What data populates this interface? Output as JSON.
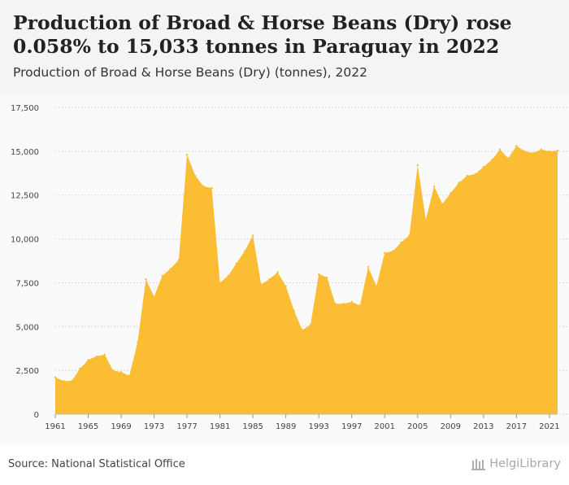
{
  "header": {
    "title": "Production of Broad & Horse Beans (Dry) rose 0.058% to 15,033 tonnes in Paraguay in 2022",
    "subtitle": "Production of Broad & Horse Beans (Dry) (tonnes), 2022"
  },
  "footer": {
    "source": "Source: National Statistical Office",
    "logo_text": "HelgiLibrary"
  },
  "colors": {
    "area_fill": "#fbbd33",
    "grid": "#d9d9d9",
    "axis_text": "#444444"
  },
  "chart_data": {
    "type": "area",
    "title": "",
    "xlabel": "",
    "ylabel": "",
    "ylim": [
      0,
      17500
    ],
    "yticks": [
      0,
      2500,
      5000,
      7500,
      10000,
      12500,
      15000,
      17500
    ],
    "ytick_labels": [
      "0",
      "2,500",
      "5,000",
      "7,500",
      "10,000",
      "12,500",
      "15,000",
      "17,500"
    ],
    "xticks": [
      1961,
      1965,
      1969,
      1973,
      1977,
      1981,
      1985,
      1989,
      1993,
      1997,
      2001,
      2005,
      2009,
      2013,
      2017,
      2021
    ],
    "grid": true,
    "legend": "none",
    "series": [
      {
        "x": [
          1961,
          1962,
          1963,
          1964,
          1965,
          1966,
          1967,
          1968,
          1969,
          1970,
          1971,
          1972,
          1973,
          1974,
          1975,
          1976,
          1977,
          1978,
          1979,
          1980,
          1981,
          1982,
          1983,
          1984,
          1985,
          1986,
          1987,
          1988,
          1989,
          1990,
          1991,
          1992,
          1993,
          1994,
          1995,
          1996,
          1997,
          1998,
          1999,
          2000,
          2001,
          2002,
          2003,
          2004,
          2005,
          2006,
          2007,
          2008,
          2009,
          2010,
          2011,
          2012,
          2013,
          2014,
          2015,
          2016,
          2017,
          2018,
          2019,
          2020,
          2021,
          2022
        ],
        "values": [
          2100,
          1900,
          1900,
          2600,
          3100,
          3300,
          3400,
          2500,
          2400,
          2200,
          4100,
          7700,
          6700,
          7900,
          8300,
          8800,
          14800,
          13600,
          13000,
          12900,
          7500,
          7900,
          8600,
          9300,
          10200,
          7400,
          7700,
          8100,
          7300,
          5900,
          4800,
          5100,
          8000,
          7800,
          6300,
          6300,
          6400,
          6200,
          8400,
          7300,
          9200,
          9300,
          9800,
          10200,
          14200,
          11100,
          13000,
          12000,
          12600,
          13200,
          13600,
          13700,
          14100,
          14500,
          15100,
          14600,
          15300,
          15000,
          14900,
          15100,
          15000,
          15033
        ]
      }
    ]
  }
}
